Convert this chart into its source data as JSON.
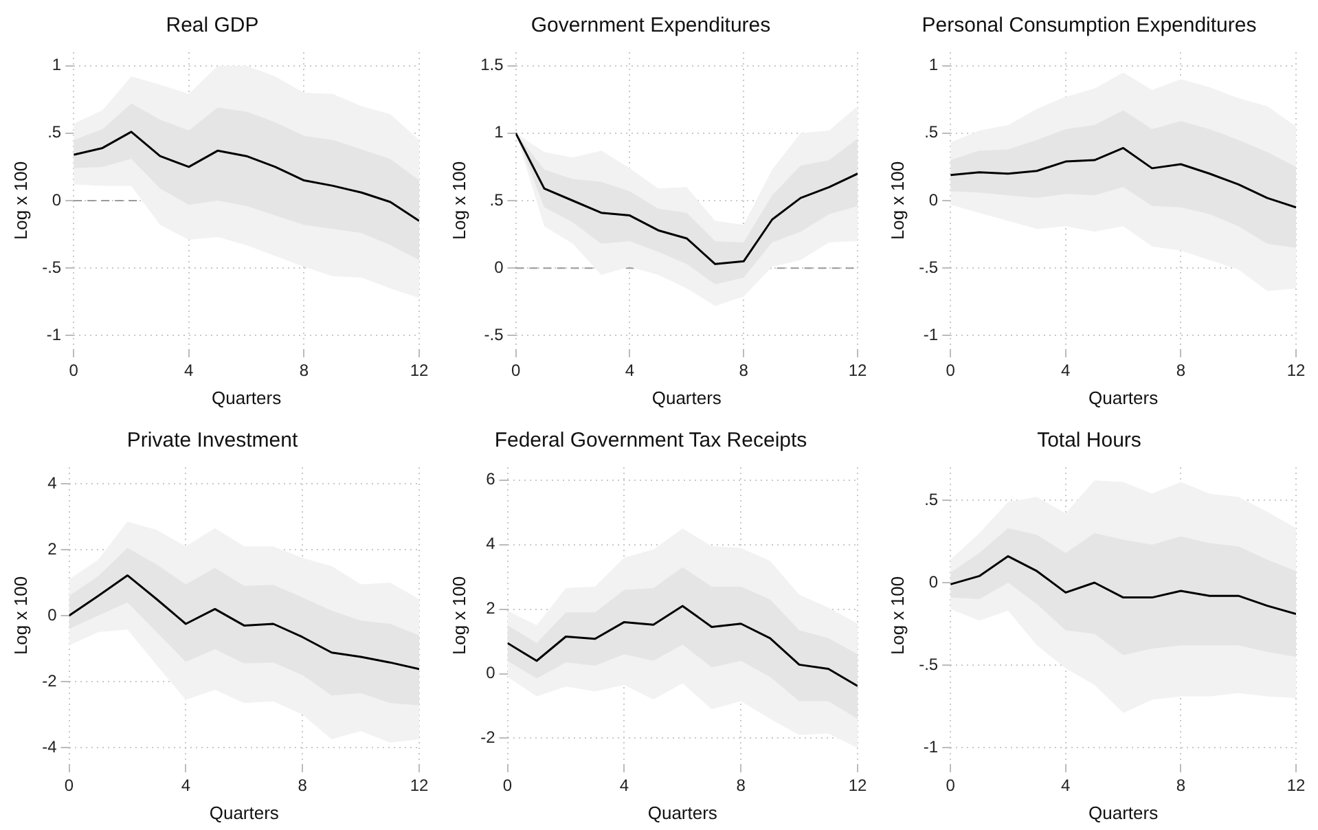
{
  "chart_data": [
    {
      "type": "line",
      "title": "Real GDP",
      "xlabel": "Quarters",
      "ylabel": "Log x 100",
      "x": [
        0,
        1,
        2,
        3,
        4,
        5,
        6,
        7,
        8,
        9,
        10,
        11,
        12
      ],
      "xlim": [
        0,
        12
      ],
      "xticks": [
        0,
        4,
        8,
        12
      ],
      "ylim": [
        -1.1,
        1.1
      ],
      "yticks": [
        {
          "value": -1,
          "label": "-1"
        },
        {
          "value": -0.5,
          "label": "-.5"
        },
        {
          "value": 0,
          "label": "0"
        },
        {
          "value": 0.5,
          "label": ".5"
        },
        {
          "value": 1,
          "label": "1"
        }
      ],
      "grid": true,
      "marker": "none",
      "line_style": "solid",
      "ref_lines": [
        {
          "axis": "y",
          "value": 0,
          "color": "#999999",
          "line_style": "dashed"
        }
      ],
      "series": [
        {
          "color": "#f2f2f2",
          "values": [
            null,
            null,
            null,
            null,
            null,
            null,
            null,
            null,
            null,
            null,
            null,
            null,
            null
          ],
          "upper": [
            0.57,
            0.67,
            0.92,
            0.86,
            0.79,
            1.0,
            1.0,
            0.92,
            0.8,
            0.79,
            0.7,
            0.64,
            0.45
          ],
          "lower": [
            0.12,
            0.11,
            0.11,
            -0.18,
            -0.29,
            -0.27,
            -0.33,
            -0.41,
            -0.49,
            -0.56,
            -0.57,
            -0.65,
            -0.72
          ]
        },
        {
          "color": "#e5e5e5",
          "values": [
            null,
            null,
            null,
            null,
            null,
            null,
            null,
            null,
            null,
            null,
            null,
            null,
            null
          ],
          "upper": [
            0.45,
            0.53,
            0.72,
            0.6,
            0.52,
            0.69,
            0.66,
            0.58,
            0.48,
            0.45,
            0.38,
            0.31,
            0.15
          ],
          "lower": [
            0.24,
            0.25,
            0.31,
            0.09,
            -0.03,
            0,
            -0.04,
            -0.11,
            -0.18,
            -0.21,
            -0.24,
            -0.33,
            -0.44
          ]
        },
        {
          "color": "#000000",
          "values": [
            0.34,
            0.39,
            0.51,
            0.33,
            0.25,
            0.37,
            0.33,
            0.25,
            0.15,
            0.11,
            0.06,
            -0.01,
            -0.15
          ]
        }
      ]
    },
    {
      "type": "line",
      "title": "Government Expenditures",
      "xlabel": "Quarters",
      "ylabel": "Log x 100",
      "x": [
        0,
        1,
        2,
        3,
        4,
        5,
        6,
        7,
        8,
        9,
        10,
        11,
        12
      ],
      "xlim": [
        0,
        12
      ],
      "xticks": [
        0,
        4,
        8,
        12
      ],
      "ylim": [
        -0.6,
        1.6
      ],
      "yticks": [
        {
          "value": -0.5,
          "label": "-.5"
        },
        {
          "value": 0,
          "label": "0"
        },
        {
          "value": 0.5,
          "label": ".5"
        },
        {
          "value": 1,
          "label": "1"
        },
        {
          "value": 1.5,
          "label": "1.5"
        }
      ],
      "grid": true,
      "marker": "none",
      "line_style": "solid",
      "ref_lines": [
        {
          "axis": "y",
          "value": 0,
          "color": "#999999",
          "line_style": "dashed"
        }
      ],
      "series": [
        {
          "color": "#f2f2f2",
          "values": [
            null,
            null,
            null,
            null,
            null,
            null,
            null,
            null,
            null,
            null,
            null,
            null,
            null
          ],
          "upper": [
            1,
            0.86,
            0.82,
            0.87,
            0.74,
            0.59,
            0.6,
            0.35,
            0.32,
            0.73,
            1.0,
            1.02,
            1.2
          ],
          "lower": [
            1,
            0.31,
            0.18,
            -0.05,
            0.01,
            -0.05,
            -0.15,
            -0.28,
            -0.21,
            0.01,
            0.06,
            0.19,
            0.2
          ]
        },
        {
          "color": "#e5e5e5",
          "values": [
            null,
            null,
            null,
            null,
            null,
            null,
            null,
            null,
            null,
            null,
            null,
            null,
            null
          ],
          "upper": [
            1,
            0.73,
            0.66,
            0.64,
            0.57,
            0.44,
            0.41,
            0.2,
            0.19,
            0.54,
            0.76,
            0.8,
            0.96
          ],
          "lower": [
            1,
            0.45,
            0.34,
            0.18,
            0.2,
            0.12,
            0.03,
            -0.12,
            -0.07,
            0.19,
            0.27,
            0.4,
            0.46
          ]
        },
        {
          "color": "#000000",
          "values": [
            1,
            0.59,
            0.5,
            0.41,
            0.39,
            0.28,
            0.22,
            0.03,
            0.05,
            0.36,
            0.52,
            0.6,
            0.7
          ]
        }
      ]
    },
    {
      "type": "line",
      "title": "Personal Consumption Expenditures",
      "xlabel": "Quarters",
      "ylabel": "Log x 100",
      "x": [
        0,
        1,
        2,
        3,
        4,
        5,
        6,
        7,
        8,
        9,
        10,
        11,
        12
      ],
      "xlim": [
        0,
        12
      ],
      "xticks": [
        0,
        4,
        8,
        12
      ],
      "ylim": [
        -1.1,
        1.1
      ],
      "yticks": [
        {
          "value": -1,
          "label": "-1"
        },
        {
          "value": -0.5,
          "label": "-.5"
        },
        {
          "value": 0,
          "label": "0"
        },
        {
          "value": 0.5,
          "label": ".5"
        },
        {
          "value": 1,
          "label": "1"
        }
      ],
      "grid": true,
      "marker": "none",
      "line_style": "solid",
      "ref_lines": [
        {
          "axis": "y",
          "value": 0,
          "color": "#999999",
          "line_style": "dashed"
        }
      ],
      "series": [
        {
          "color": "#f2f2f2",
          "values": [
            null,
            null,
            null,
            null,
            null,
            null,
            null,
            null,
            null,
            null,
            null,
            null,
            null
          ],
          "upper": [
            0.43,
            0.52,
            0.56,
            0.68,
            0.77,
            0.83,
            0.95,
            0.82,
            0.9,
            0.84,
            0.76,
            0.7,
            0.55
          ],
          "lower": [
            -0.03,
            -0.09,
            -0.15,
            -0.21,
            -0.19,
            -0.23,
            -0.19,
            -0.34,
            -0.37,
            -0.44,
            -0.51,
            -0.67,
            -0.65
          ]
        },
        {
          "color": "#e5e5e5",
          "values": [
            null,
            null,
            null,
            null,
            null,
            null,
            null,
            null,
            null,
            null,
            null,
            null,
            null
          ],
          "upper": [
            0.3,
            0.37,
            0.38,
            0.45,
            0.53,
            0.56,
            0.67,
            0.53,
            0.59,
            0.53,
            0.45,
            0.36,
            0.25
          ],
          "lower": [
            0.07,
            0.06,
            0.04,
            0.02,
            0.05,
            0.04,
            0.1,
            -0.04,
            -0.05,
            -0.1,
            -0.19,
            -0.32,
            -0.35
          ]
        },
        {
          "color": "#000000",
          "values": [
            0.19,
            0.21,
            0.2,
            0.22,
            0.29,
            0.3,
            0.39,
            0.24,
            0.27,
            0.2,
            0.12,
            0.02,
            -0.05
          ]
        }
      ]
    },
    {
      "type": "line",
      "title": "Private Investment",
      "xlabel": "Quarters",
      "ylabel": "Log x 100",
      "x": [
        0,
        1,
        2,
        3,
        4,
        5,
        6,
        7,
        8,
        9,
        10,
        11,
        12
      ],
      "xlim": [
        0,
        12
      ],
      "xticks": [
        0,
        4,
        8,
        12
      ],
      "ylim": [
        -4.5,
        4.5
      ],
      "yticks": [
        -4,
        -2,
        0,
        2,
        4
      ],
      "grid": true,
      "marker": "none",
      "line_style": "solid",
      "ref_lines": [
        {
          "axis": "y",
          "value": 0,
          "color": "#999999",
          "line_style": "dashed"
        }
      ],
      "series": [
        {
          "color": "#f2f2f2",
          "values": [
            null,
            null,
            null,
            null,
            null,
            null,
            null,
            null,
            null,
            null,
            null,
            null,
            null
          ],
          "upper": [
            1.1,
            1.7,
            2.85,
            2.6,
            2.1,
            2.65,
            2.1,
            2.1,
            1.75,
            1.5,
            0.95,
            1.0,
            0.5
          ],
          "lower": [
            -0.9,
            -0.5,
            -0.42,
            -1.5,
            -2.55,
            -2.25,
            -2.65,
            -2.6,
            -3.0,
            -3.75,
            -3.5,
            -3.85,
            -3.75
          ]
        },
        {
          "color": "#e5e5e5",
          "values": [
            null,
            null,
            null,
            null,
            null,
            null,
            null,
            null,
            null,
            null,
            null,
            null,
            null
          ],
          "upper": [
            0.6,
            1.2,
            2.05,
            1.55,
            0.95,
            1.45,
            0.9,
            0.93,
            0.55,
            0.15,
            -0.15,
            -0.25,
            -0.6
          ],
          "lower": [
            -0.4,
            0,
            0.4,
            -0.5,
            -1.4,
            -1.02,
            -1.45,
            -1.42,
            -1.8,
            -2.42,
            -2.35,
            -2.65,
            -2.72
          ]
        },
        {
          "color": "#000000",
          "values": [
            0,
            0.6,
            1.22,
            0.5,
            -0.25,
            0.2,
            -0.3,
            -0.25,
            -0.65,
            -1.12,
            -1.25,
            -1.42,
            -1.62
          ]
        }
      ]
    },
    {
      "type": "line",
      "title": "Federal Government Tax Receipts",
      "xlabel": "Quarters",
      "ylabel": "Log x 100",
      "x": [
        0,
        1,
        2,
        3,
        4,
        5,
        6,
        7,
        8,
        9,
        10,
        11,
        12
      ],
      "xlim": [
        0,
        12
      ],
      "xticks": [
        0,
        4,
        8,
        12
      ],
      "ylim": [
        -2.8,
        6.4
      ],
      "yticks": [
        -2,
        0,
        2,
        4,
        6
      ],
      "grid": true,
      "marker": "none",
      "line_style": "solid",
      "ref_lines": [
        {
          "axis": "y",
          "value": 0,
          "color": "#999999",
          "line_style": "dashed"
        }
      ],
      "series": [
        {
          "color": "#f2f2f2",
          "values": [
            null,
            null,
            null,
            null,
            null,
            null,
            null,
            null,
            null,
            null,
            null,
            null,
            null
          ],
          "upper": [
            1.95,
            1.5,
            2.65,
            2.7,
            3.6,
            3.85,
            4.5,
            3.95,
            3.9,
            3.5,
            2.45,
            2.05,
            1.55
          ],
          "lower": [
            -0.1,
            -0.7,
            -0.4,
            -0.55,
            -0.35,
            -0.8,
            -0.3,
            -1.1,
            -0.85,
            -1.4,
            -1.9,
            -1.85,
            -2.3
          ]
        },
        {
          "color": "#e5e5e5",
          "values": [
            null,
            null,
            null,
            null,
            null,
            null,
            null,
            null,
            null,
            null,
            null,
            null,
            null
          ],
          "upper": [
            1.5,
            0.95,
            1.9,
            1.9,
            2.6,
            2.65,
            3.3,
            2.7,
            2.7,
            2.3,
            1.35,
            1.1,
            0.6
          ],
          "lower": [
            0.4,
            -0.15,
            0.35,
            0.25,
            0.6,
            0.4,
            0.9,
            0.2,
            0.4,
            -0.1,
            -0.85,
            -0.85,
            -1.4
          ]
        },
        {
          "color": "#000000",
          "values": [
            0.95,
            0.4,
            1.15,
            1.08,
            1.6,
            1.52,
            2.1,
            1.45,
            1.55,
            1.1,
            0.28,
            0.15,
            -0.38
          ]
        }
      ]
    },
    {
      "type": "line",
      "title": "Total Hours",
      "xlabel": "Quarters",
      "ylabel": "Log x 100",
      "x": [
        0,
        1,
        2,
        3,
        4,
        5,
        6,
        7,
        8,
        9,
        10,
        11,
        12
      ],
      "xlim": [
        0,
        12
      ],
      "xticks": [
        0,
        4,
        8,
        12
      ],
      "ylim": [
        -1.1,
        0.7
      ],
      "yticks": [
        {
          "value": -1,
          "label": "-1"
        },
        {
          "value": -0.5,
          "label": "-.5"
        },
        {
          "value": 0,
          "label": "0"
        },
        {
          "value": 0.5,
          "label": ".5"
        }
      ],
      "grid": true,
      "marker": "none",
      "line_style": "solid",
      "ref_lines": [
        {
          "axis": "y",
          "value": 0,
          "color": "#999999",
          "line_style": "dashed"
        }
      ],
      "series": [
        {
          "color": "#f2f2f2",
          "values": [
            null,
            null,
            null,
            null,
            null,
            null,
            null,
            null,
            null,
            null,
            null,
            null,
            null
          ],
          "upper": [
            0.14,
            0.3,
            0.49,
            0.52,
            0.42,
            0.62,
            0.61,
            0.54,
            0.61,
            0.54,
            0.52,
            0.43,
            0.33
          ],
          "lower": [
            -0.16,
            -0.23,
            -0.17,
            -0.38,
            -0.52,
            -0.62,
            -0.79,
            -0.71,
            -0.69,
            -0.69,
            -0.67,
            -0.69,
            -0.7
          ]
        },
        {
          "color": "#e5e5e5",
          "values": [
            null,
            null,
            null,
            null,
            null,
            null,
            null,
            null,
            null,
            null,
            null,
            null,
            null
          ],
          "upper": [
            0.06,
            0.18,
            0.33,
            0.29,
            0.18,
            0.3,
            0.26,
            0.23,
            0.28,
            0.24,
            0.22,
            0.14,
            0.07
          ],
          "lower": [
            -0.09,
            -0.1,
            0,
            -0.13,
            -0.29,
            -0.31,
            -0.44,
            -0.4,
            -0.38,
            -0.38,
            -0.38,
            -0.42,
            -0.45
          ]
        },
        {
          "color": "#000000",
          "values": [
            -0.01,
            0.04,
            0.16,
            0.07,
            -0.06,
            0,
            -0.09,
            -0.09,
            -0.05,
            -0.08,
            -0.08,
            -0.14,
            -0.19
          ]
        }
      ]
    }
  ]
}
